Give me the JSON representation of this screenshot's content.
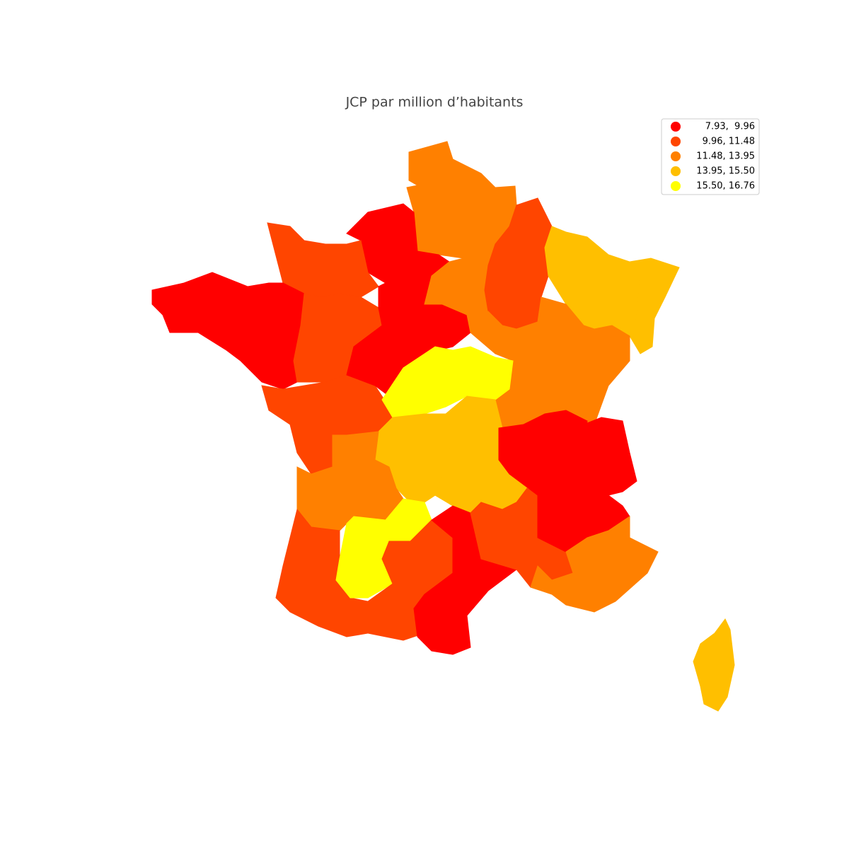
{
  "title": "JCP par million d’habitants",
  "legend": [
    {
      "label": "7.93,  9.96",
      "color": "#ff0000"
    },
    {
      "label": "9.96, 11.48",
      "color": "#ff4500"
    },
    {
      "label": "11.48, 13.95",
      "color": "#ff8000"
    },
    {
      "label": "13.95, 15.50",
      "color": "#ffbf00"
    },
    {
      "label": "15.50, 16.76",
      "color": "#ffff00"
    }
  ],
  "region_colors": [
    "#ff8000",
    "#ff8000",
    "#ff0000",
    "#ff4500",
    "#ff0000",
    "#ff4500",
    "#ff4500",
    "#ff0000",
    "#ff8000",
    "#ff4500",
    "#ffbf00",
    "#ffbf00",
    "#ff8000",
    "#ff8000",
    "#ffff00",
    "#ffbf00",
    "#ffbf00",
    "#ff0000",
    "#ff0000",
    "#ff8000",
    "#ff4500",
    "#ffff00",
    "#ff4500",
    "#ff0000",
    "#ff4500",
    "#ff0000",
    "#ff8000",
    "#ffbf00"
  ]
}
